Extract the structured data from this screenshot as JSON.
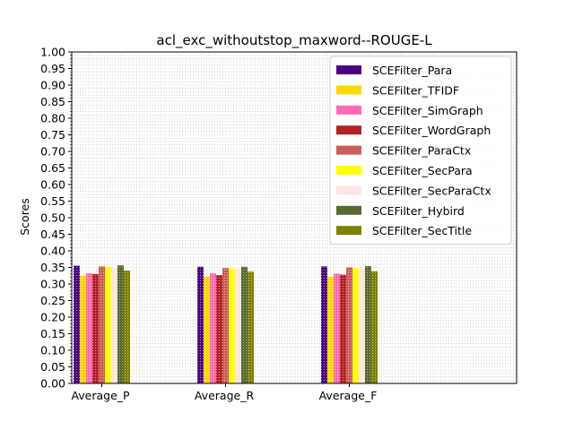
{
  "chart_data": {
    "type": "bar",
    "title": "acl_exc_withoutstop_maxword--ROUGE-L",
    "xlabel": "",
    "ylabel": "Scores",
    "ylim": [
      0,
      1.0
    ],
    "yticks": [
      "0.00",
      "0.05",
      "0.10",
      "0.15",
      "0.20",
      "0.25",
      "0.30",
      "0.35",
      "0.40",
      "0.45",
      "0.50",
      "0.55",
      "0.60",
      "0.65",
      "0.70",
      "0.75",
      "0.80",
      "0.85",
      "0.90",
      "0.95",
      "1.00"
    ],
    "grid": true,
    "legend_position": "top-right",
    "categories": [
      "Average_P",
      "Average_R",
      "Average_F"
    ],
    "series": [
      {
        "name": "SCEFilter_Para",
        "color": "#4b0082",
        "values": [
          0.355,
          0.352,
          0.353
        ]
      },
      {
        "name": "SCEFilter_TFIDF",
        "color": "#ffd700",
        "values": [
          0.325,
          0.322,
          0.322
        ]
      },
      {
        "name": "SCEFilter_SimGraph",
        "color": "#ff69b4",
        "values": [
          0.332,
          0.332,
          0.331
        ]
      },
      {
        "name": "SCEFilter_WordGraph",
        "color": "#b22222",
        "values": [
          0.33,
          0.327,
          0.328
        ]
      },
      {
        "name": "SCEFilter_ParaCtx",
        "color": "#cd5c5c",
        "values": [
          0.353,
          0.348,
          0.35
        ]
      },
      {
        "name": "SCEFilter_SecPara",
        "color": "#ffff00",
        "values": [
          0.352,
          0.347,
          0.348
        ]
      },
      {
        "name": "SCEFilter_SecParaCtx",
        "color": "#ffe4e1",
        "values": [
          0.348,
          0.346,
          0.346
        ]
      },
      {
        "name": "SCEFilter_Hybird",
        "color": "#556b2f",
        "values": [
          0.356,
          0.352,
          0.354
        ]
      },
      {
        "name": "SCEFilter_SecTitle",
        "color": "#808000",
        "values": [
          0.34,
          0.337,
          0.338
        ]
      }
    ]
  }
}
